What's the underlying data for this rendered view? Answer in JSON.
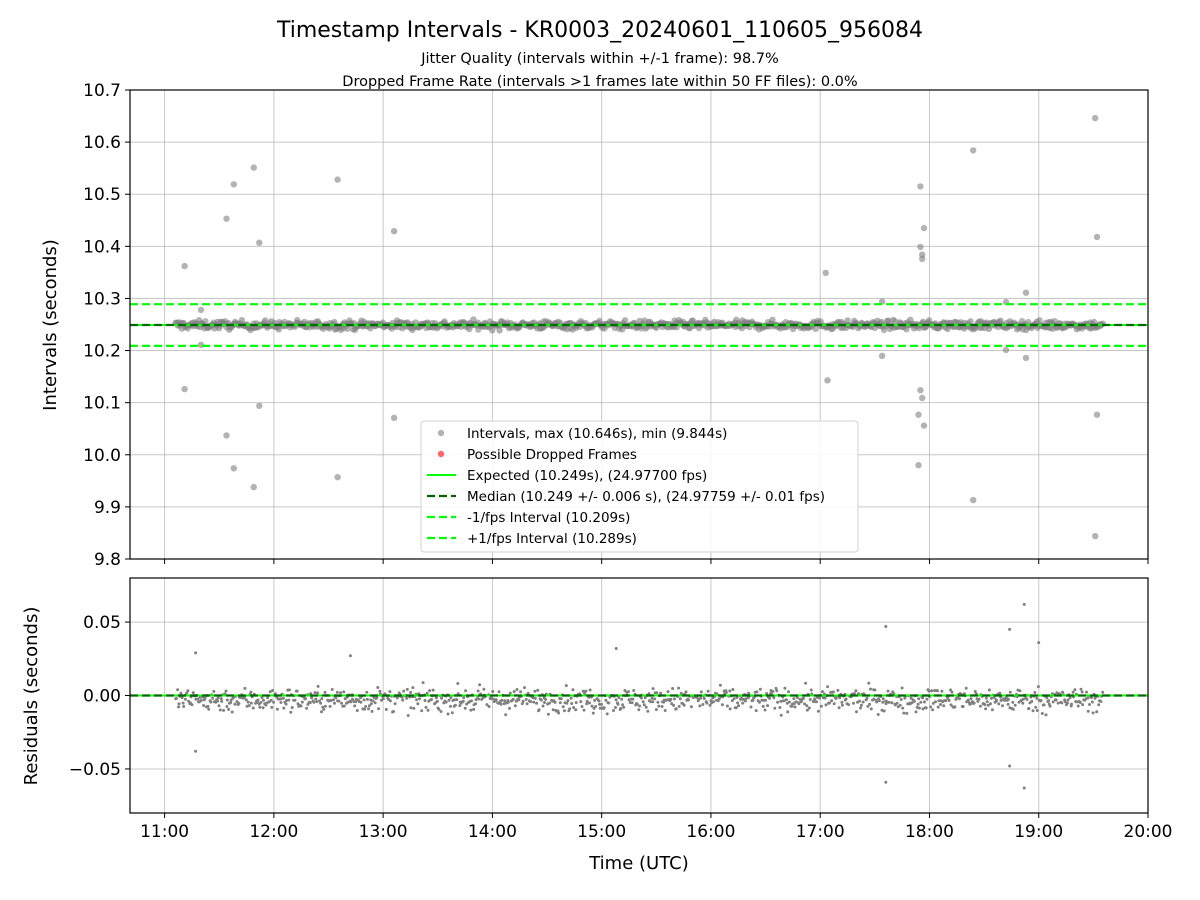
{
  "figure": {
    "title": "Timestamp Intervals - KR0003_20240601_110605_956084",
    "subtitle_1": "Jitter Quality (intervals within +/-1 frame): 98.7%",
    "subtitle_2": "Dropped Frame Rate (intervals >1 frames late within 50 FF files): 0.0%"
  },
  "colors": {
    "intervals": "#808080",
    "dropped": "#ff0000",
    "expected": "#00ff00",
    "median": "#006400",
    "bounds": "#00ff00",
    "grid": "#b0b0b0",
    "residuals": "#808080"
  },
  "chart_data": [
    {
      "type": "scatter",
      "name": "intervals",
      "xlabel": "",
      "ylabel": "Intervals (seconds)",
      "xlim": [
        "10:41",
        "20:00"
      ],
      "ylim": [
        9.8,
        10.7
      ],
      "yticks": [
        9.8,
        9.9,
        10.0,
        10.1,
        10.2,
        10.3,
        10.4,
        10.5,
        10.6,
        10.7
      ],
      "ytick_labels": [
        "9.8",
        "9.9",
        "10.0",
        "10.1",
        "10.2",
        "10.3",
        "10.4",
        "10.5",
        "10.6",
        "10.7"
      ],
      "grid": true,
      "legend_position": "lower-center",
      "main_band": {
        "x_start": "11:06",
        "x_end": "19:35",
        "center": 10.249,
        "typical_spread": 0.008
      },
      "outliers": [
        {
          "x": "11:11",
          "y": 10.362
        },
        {
          "x": "11:11",
          "y": 10.126
        },
        {
          "x": "11:20",
          "y": 10.278
        },
        {
          "x": "11:20",
          "y": 10.211
        },
        {
          "x": "11:34",
          "y": 10.453
        },
        {
          "x": "11:34",
          "y": 10.037
        },
        {
          "x": "11:38",
          "y": 10.519
        },
        {
          "x": "11:38",
          "y": 9.974
        },
        {
          "x": "11:49",
          "y": 10.551
        },
        {
          "x": "11:49",
          "y": 9.938
        },
        {
          "x": "11:52",
          "y": 10.407
        },
        {
          "x": "11:52",
          "y": 10.094
        },
        {
          "x": "12:35",
          "y": 10.528
        },
        {
          "x": "12:35",
          "y": 9.957
        },
        {
          "x": "13:06",
          "y": 10.429
        },
        {
          "x": "13:06",
          "y": 10.071
        },
        {
          "x": "17:03",
          "y": 10.349
        },
        {
          "x": "17:04",
          "y": 10.143
        },
        {
          "x": "17:34",
          "y": 10.294
        },
        {
          "x": "17:34",
          "y": 10.19
        },
        {
          "x": "17:55",
          "y": 10.515
        },
        {
          "x": "17:55",
          "y": 10.399
        },
        {
          "x": "17:56",
          "y": 10.376
        },
        {
          "x": "17:56",
          "y": 10.384
        },
        {
          "x": "17:57",
          "y": 10.435
        },
        {
          "x": "17:55",
          "y": 10.124
        },
        {
          "x": "17:56",
          "y": 10.109
        },
        {
          "x": "17:54",
          "y": 10.077
        },
        {
          "x": "17:57",
          "y": 10.056
        },
        {
          "x": "17:54",
          "y": 9.98
        },
        {
          "x": "18:24",
          "y": 10.584
        },
        {
          "x": "18:24",
          "y": 9.913
        },
        {
          "x": "18:42",
          "y": 10.293
        },
        {
          "x": "18:42",
          "y": 10.201
        },
        {
          "x": "18:53",
          "y": 10.311
        },
        {
          "x": "18:53",
          "y": 10.186
        },
        {
          "x": "19:31",
          "y": 10.646
        },
        {
          "x": "19:32",
          "y": 10.418
        },
        {
          "x": "19:32",
          "y": 10.077
        },
        {
          "x": "19:31",
          "y": 9.844
        }
      ],
      "lines": [
        {
          "name": "Expected (10.249s), (24.97700 fps)",
          "y": 10.249,
          "style": "solid"
        },
        {
          "name": "Median (10.249 +/- 0.006 s), (24.97759 +/- 0.01 fps)",
          "y": 10.249,
          "style": "dashed"
        },
        {
          "name": "-1/fps Interval (10.209s)",
          "y": 10.209,
          "style": "dashed"
        },
        {
          "name": "+1/fps Interval (10.289s)",
          "y": 10.289,
          "style": "dashed"
        }
      ],
      "legend": [
        "Intervals, max (10.646s), min (9.844s)",
        "Possible Dropped Frames",
        "Expected (10.249s), (24.97700 fps)",
        "Median (10.249 +/- 0.006 s), (24.97759 +/- 0.01 fps)",
        "-1/fps Interval (10.209s)",
        "+1/fps Interval (10.289s)"
      ]
    },
    {
      "type": "scatter",
      "name": "residuals",
      "xlabel": "Time (UTC)",
      "ylabel": "Residuals (seconds)",
      "xlim": [
        "10:41",
        "20:00"
      ],
      "ylim": [
        -0.08,
        0.08
      ],
      "yticks": [
        -0.05,
        0.0,
        0.05
      ],
      "ytick_labels": [
        "−0.05",
        "0.00",
        "0.05"
      ],
      "xticks": [
        "11:00",
        "12:00",
        "13:00",
        "14:00",
        "15:00",
        "16:00",
        "17:00",
        "18:00",
        "19:00",
        "20:00"
      ],
      "grid": true,
      "main_band": {
        "x_start": "11:06",
        "x_end": "19:35",
        "center": -0.003,
        "typical_spread": 0.008
      },
      "outliers": [
        {
          "x": "11:17",
          "y": 0.029
        },
        {
          "x": "11:17",
          "y": -0.038
        },
        {
          "x": "12:42",
          "y": 0.027
        },
        {
          "x": "17:36",
          "y": 0.047
        },
        {
          "x": "17:36",
          "y": -0.059
        },
        {
          "x": "18:52",
          "y": 0.062
        },
        {
          "x": "18:52",
          "y": -0.063
        },
        {
          "x": "18:44",
          "y": 0.045
        },
        {
          "x": "18:44",
          "y": -0.048
        },
        {
          "x": "19:00",
          "y": 0.036
        },
        {
          "x": "15:08",
          "y": 0.032
        }
      ],
      "lines": [
        {
          "name": "zero-expected",
          "y": 0.0,
          "style": "solid"
        },
        {
          "name": "zero-median",
          "y": 0.0,
          "style": "dashed"
        }
      ]
    }
  ]
}
